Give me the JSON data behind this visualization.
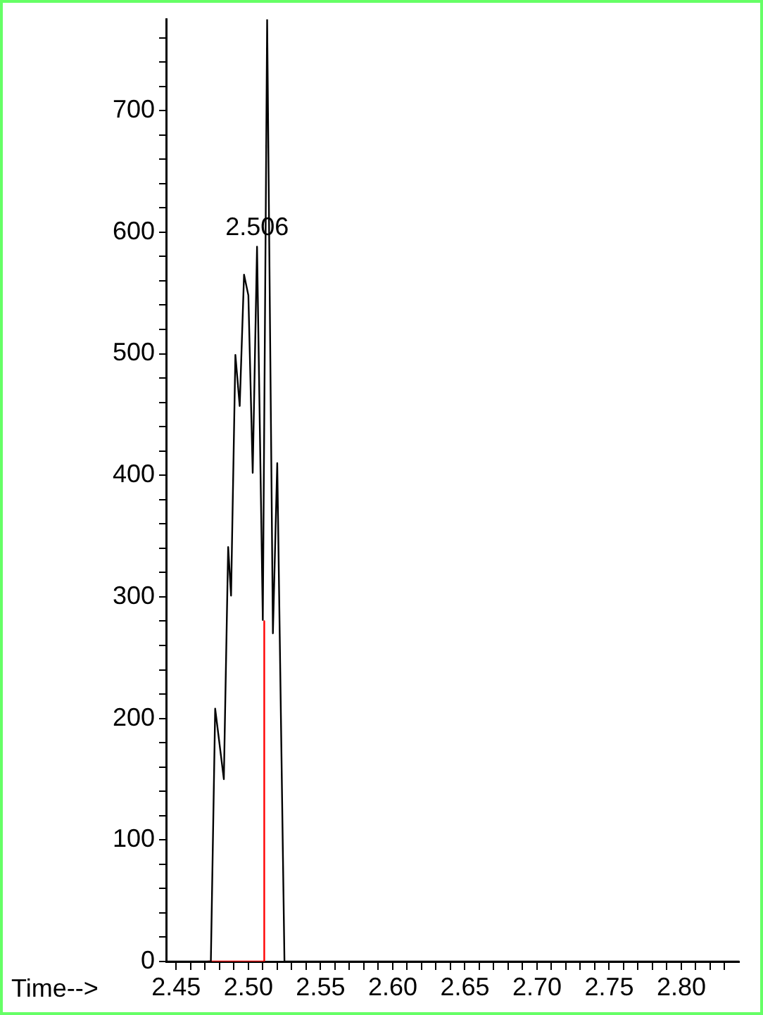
{
  "chart_data": {
    "type": "line",
    "xlabel": "Time-->",
    "series": [
      {
        "color": "#000000",
        "x": [
          2.443,
          2.474,
          2.477,
          2.483,
          2.486,
          2.488,
          2.491,
          2.494,
          2.497,
          2.5,
          2.503,
          2.506,
          2.51,
          2.513,
          2.517,
          2.52,
          2.525,
          2.84
        ],
        "values": [
          0,
          0,
          208,
          150,
          341,
          301,
          499,
          457,
          565,
          548,
          402,
          588,
          281,
          775,
          270,
          410,
          0,
          0
        ]
      },
      {
        "color": "#ff0000",
        "x": [
          2.472,
          2.511,
          2.511
        ],
        "values": [
          0,
          0,
          280
        ]
      }
    ],
    "annotations": [
      {
        "text": "2.506",
        "x": 2.506,
        "y": 588
      }
    ],
    "xlim": [
      2.443,
      2.84
    ],
    "ylim": [
      0,
      775
    ],
    "xticks": [
      2.45,
      {
        "value": 2.46,
        "label": null
      },
      {
        "value": 2.47,
        "label": null
      },
      {
        "value": 2.48,
        "label": null
      },
      {
        "value": 2.49,
        "label": null
      },
      {
        "value": 2.5,
        "label": "2.50"
      },
      {
        "value": 2.51,
        "label": null
      },
      {
        "value": 2.52,
        "label": null
      },
      {
        "value": 2.53,
        "label": null
      },
      {
        "value": 2.54,
        "label": null
      },
      2.55,
      {
        "value": 2.56,
        "label": null
      },
      {
        "value": 2.57,
        "label": null
      },
      {
        "value": 2.58,
        "label": null
      },
      {
        "value": 2.59,
        "label": null
      },
      {
        "value": 2.6,
        "label": "2.60"
      },
      {
        "value": 2.61,
        "label": null
      },
      {
        "value": 2.62,
        "label": null
      },
      {
        "value": 2.63,
        "label": null
      },
      {
        "value": 2.64,
        "label": null
      },
      2.65,
      {
        "value": 2.66,
        "label": null
      },
      {
        "value": 2.67,
        "label": null
      },
      {
        "value": 2.68,
        "label": null
      },
      {
        "value": 2.69,
        "label": null
      },
      {
        "value": 2.7,
        "label": "2.70"
      },
      {
        "value": 2.71,
        "label": null
      },
      {
        "value": 2.72,
        "label": null
      },
      {
        "value": 2.73,
        "label": null
      },
      {
        "value": 2.74,
        "label": null
      },
      2.75,
      {
        "value": 2.76,
        "label": null
      },
      {
        "value": 2.77,
        "label": null
      },
      {
        "value": 2.78,
        "label": null
      },
      {
        "value": 2.79,
        "label": null
      },
      {
        "value": 2.8,
        "label": "2.80"
      },
      {
        "value": 2.81,
        "label": null
      },
      {
        "value": 2.82,
        "label": null
      },
      {
        "value": 2.83,
        "label": null
      }
    ],
    "yticks": [
      0,
      {
        "value": 20,
        "label": null
      },
      {
        "value": 40,
        "label": null
      },
      {
        "value": 60,
        "label": null
      },
      {
        "value": 80,
        "label": null
      },
      100,
      {
        "value": 120,
        "label": null
      },
      {
        "value": 140,
        "label": null
      },
      {
        "value": 160,
        "label": null
      },
      {
        "value": 180,
        "label": null
      },
      200,
      {
        "value": 220,
        "label": null
      },
      {
        "value": 240,
        "label": null
      },
      {
        "value": 260,
        "label": null
      },
      {
        "value": 280,
        "label": null
      },
      300,
      {
        "value": 320,
        "label": null
      },
      {
        "value": 340,
        "label": null
      },
      {
        "value": 360,
        "label": null
      },
      {
        "value": 380,
        "label": null
      },
      400,
      {
        "value": 420,
        "label": null
      },
      {
        "value": 440,
        "label": null
      },
      {
        "value": 460,
        "label": null
      },
      {
        "value": 480,
        "label": null
      },
      500,
      {
        "value": 520,
        "label": null
      },
      {
        "value": 540,
        "label": null
      },
      {
        "value": 560,
        "label": null
      },
      {
        "value": 580,
        "label": null
      },
      600,
      {
        "value": 620,
        "label": null
      },
      {
        "value": 640,
        "label": null
      },
      {
        "value": 660,
        "label": null
      },
      {
        "value": 680,
        "label": null
      },
      700,
      {
        "value": 720,
        "label": null
      },
      {
        "value": 740,
        "label": null
      },
      {
        "value": 760,
        "label": null
      }
    ],
    "grid": false,
    "legend": false,
    "marker": "none",
    "line_style": "solid"
  }
}
